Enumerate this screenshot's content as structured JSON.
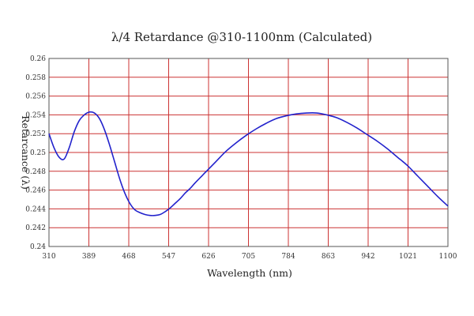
{
  "chart_data": {
    "type": "line",
    "title": "λ/4 Retardance @310-1100nm (Calculated)",
    "xlabel": "Wavelength (nm)",
    "ylabel": "Retarcance (λ)",
    "xlim": [
      310,
      1100
    ],
    "ylim": [
      0.24,
      0.26
    ],
    "x_ticks": [
      "310",
      "389",
      "468",
      "547",
      "626",
      "705",
      "784",
      "863",
      "942",
      "1021",
      "1100"
    ],
    "y_ticks": [
      "0.24",
      "0.242",
      "0.244",
      "0.246",
      "0.248",
      "0.25",
      "0.252",
      "0.254",
      "0.256",
      "0.258",
      "0.26"
    ],
    "grid": true,
    "colors": {
      "grid": "#cc3333",
      "line": "#2222cc",
      "axes": "#555555"
    },
    "series": [
      {
        "x": [
          310,
          320,
          330,
          340,
          350,
          360,
          370,
          380,
          390,
          400,
          410,
          420,
          430,
          440,
          450,
          460,
          470,
          480,
          490,
          500,
          510,
          520,
          530,
          540,
          550,
          560,
          570,
          580,
          590,
          600,
          620,
          640,
          660,
          680,
          700,
          720,
          740,
          760,
          780,
          800,
          820,
          840,
          860,
          880,
          900,
          920,
          940,
          960,
          980,
          1000,
          1020,
          1040,
          1060,
          1080,
          1100
        ],
        "y": [
          0.252,
          0.2505,
          0.2495,
          0.2493,
          0.2505,
          0.2522,
          0.2534,
          0.254,
          0.2543,
          0.2542,
          0.2536,
          0.2524,
          0.2508,
          0.249,
          0.2472,
          0.2457,
          0.2446,
          0.2439,
          0.2436,
          0.2434,
          0.2433,
          0.2433,
          0.2434,
          0.2437,
          0.2441,
          0.2446,
          0.2451,
          0.2457,
          0.2462,
          0.2468,
          0.2479,
          0.249,
          0.2501,
          0.251,
          0.2518,
          0.2525,
          0.2531,
          0.2536,
          0.2539,
          0.2541,
          0.2542,
          0.2542,
          0.254,
          0.2537,
          0.2532,
          0.2526,
          0.2519,
          0.2512,
          0.2504,
          0.2495,
          0.2486,
          0.2475,
          0.2464,
          0.2453,
          0.2443
        ]
      }
    ]
  }
}
